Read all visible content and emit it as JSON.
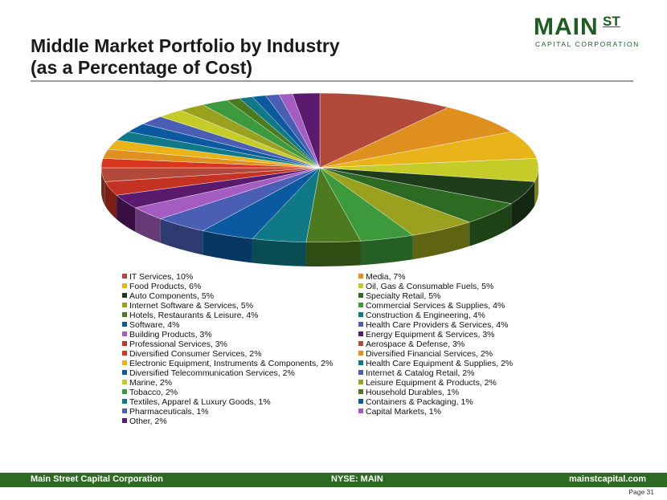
{
  "title_line1": "Middle Market Portfolio by Industry",
  "title_line2": "(as a Percentage of Cost)",
  "logo": {
    "main": "MAIN",
    "superscript": "ST",
    "sub": "CAPITAL CORPORATION"
  },
  "footer": {
    "left": "Main Street Capital Corporation",
    "center": "NYSE: MAIN",
    "right": "mainstcapital.com"
  },
  "page_label": "Page  31",
  "chart_data": {
    "type": "pie",
    "title": "",
    "unit": "%",
    "legend_position": "bottom",
    "slices": [
      {
        "label": "IT Services, 10%",
        "value": 10,
        "color": "#b24a3c"
      },
      {
        "label": "Media, 7%",
        "value": 7,
        "color": "#e0901e"
      },
      {
        "label": "Food Products, 6%",
        "value": 6,
        "color": "#e8b41a"
      },
      {
        "label": "Oil, Gas & Consumable Fuels, 5%",
        "value": 5,
        "color": "#c5cc28"
      },
      {
        "label": "Auto Components, 5%",
        "value": 5,
        "color": "#1f3d1a"
      },
      {
        "label": "Specialty Retail, 5%",
        "value": 5,
        "color": "#2e6b22"
      },
      {
        "label": "Internet Software & Services, 5%",
        "value": 5,
        "color": "#9aa11e"
      },
      {
        "label": "Commercial Services & Supplies, 4%",
        "value": 4,
        "color": "#3c9a3c"
      },
      {
        "label": "Hotels, Restaurants & Leisure, 4%",
        "value": 4,
        "color": "#4c7a1f"
      },
      {
        "label": "Construction & Engineering, 4%",
        "value": 4,
        "color": "#0f7a86"
      },
      {
        "label": "Software, 4%",
        "value": 4,
        "color": "#0b5aa0"
      },
      {
        "label": "Health Care Providers & Services, 4%",
        "value": 4,
        "color": "#4a5fb4"
      },
      {
        "label": "Building Products, 3%",
        "value": 3,
        "color": "#a45cc0"
      },
      {
        "label": "Energy Equipment & Services, 3%",
        "value": 3,
        "color": "#5a1a6e"
      },
      {
        "label": "Professional Services, 3%",
        "value": 3,
        "color": "#c43224"
      },
      {
        "label": "Aerospace & Defense, 3%",
        "value": 3,
        "color": "#b24a3c"
      },
      {
        "label": "Diversified Consumer Services, 2%",
        "value": 2,
        "color": "#d8361e"
      },
      {
        "label": "Diversified Financial Services, 2%",
        "value": 2,
        "color": "#e0901e"
      },
      {
        "label": "Electronic Equipment, Instruments & Components, 2%",
        "value": 2,
        "color": "#e8b41a"
      },
      {
        "label": "Health Care Equipment & Supplies, 2%",
        "value": 2,
        "color": "#0f7a86"
      },
      {
        "label": "Diversified Telecommunication Services, 2%",
        "value": 2,
        "color": "#0b5aa0"
      },
      {
        "label": "Internet & Catalog Retail, 2%",
        "value": 2,
        "color": "#4a5fb4"
      },
      {
        "label": "Marine, 2%",
        "value": 2,
        "color": "#c5cc28"
      },
      {
        "label": "Leisure Equipment & Products, 2%",
        "value": 2,
        "color": "#9aa11e"
      },
      {
        "label": "Tobacco, 2%",
        "value": 2,
        "color": "#3c9a3c"
      },
      {
        "label": "Household Durables, 1%",
        "value": 1,
        "color": "#4c7a1f"
      },
      {
        "label": "Textiles, Apparel & Luxury Goods, 1%",
        "value": 1,
        "color": "#0f7a86"
      },
      {
        "label": "Containers & Packaging, 1%",
        "value": 1,
        "color": "#0b5aa0"
      },
      {
        "label": "Pharmaceuticals, 1%",
        "value": 1,
        "color": "#4a5fb4"
      },
      {
        "label": "Capital Markets, 1%",
        "value": 1,
        "color": "#a45cc0"
      },
      {
        "label": "Other, 2%",
        "value": 2,
        "color": "#5a1a6e"
      }
    ]
  }
}
